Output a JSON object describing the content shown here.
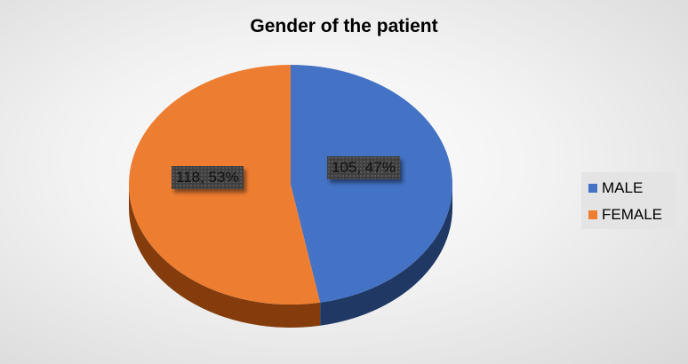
{
  "chart_data": {
    "type": "pie",
    "title": "Gender of the patient",
    "categories": [
      "MALE",
      "FEMALE"
    ],
    "values": [
      105,
      118
    ],
    "percents": [
      47,
      53
    ],
    "data_labels": [
      "105, 47%",
      "118, 53%"
    ],
    "colors": [
      "#4472c4",
      "#ed7d31"
    ],
    "side_colors": [
      "#1f3864",
      "#843c0c"
    ],
    "style": "3d",
    "legend_position": "right"
  }
}
